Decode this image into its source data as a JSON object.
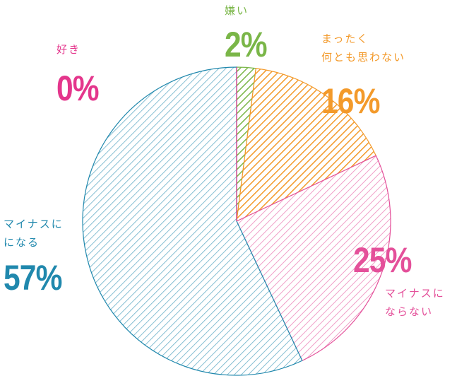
{
  "chart_data": {
    "type": "pie",
    "categories": [
      "嫌い",
      "まったく\n何とも思わない",
      "マイナスに\nならない",
      "マイナスに\nになる",
      "好き"
    ],
    "values": [
      2,
      16,
      25,
      57,
      0
    ],
    "value_labels": [
      "2%",
      "16%",
      "25%",
      "57%",
      "0%"
    ],
    "colors": [
      "#7ab648",
      "#f39a2b",
      "#e4509a",
      "#2088ad",
      "#e4368c"
    ]
  }
}
